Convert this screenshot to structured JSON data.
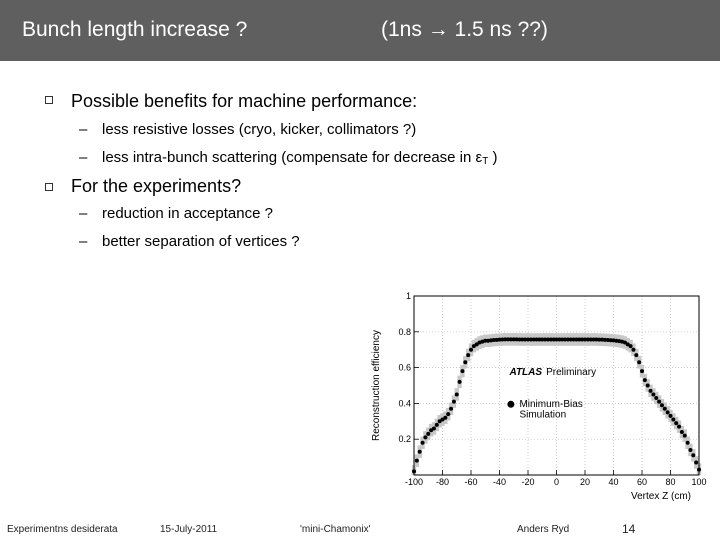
{
  "header": {
    "title": "Bunch length increase ?",
    "title_right_pre": "(1ns ",
    "arrow": "→",
    "title_right_post": " 1.5 ns ??)"
  },
  "bullets": [
    {
      "text": "Possible benefits for machine performance:",
      "subitems": [
        "less resistive losses (cryo, kicker, collimators ?)",
        "less intra-bunch scattering (compensate for decrease in εT )"
      ]
    },
    {
      "text": "For the experiments?",
      "subitems": [
        "reduction in acceptance ?",
        "better separation of vertices ?"
      ]
    }
  ],
  "sub_marker": "–",
  "subitem_2_prefix": "less intra-bunch scattering (compensate for decrease in ",
  "subitem_2_eps": "ε",
  "subitem_2_sub": "T",
  "subitem_2_suffix": " )",
  "chart_data": {
    "type": "scatter",
    "title": "",
    "xlabel": "Vertex Z (cm)",
    "ylabel": "Reconstruction efficiency",
    "xlim": [
      -100,
      100
    ],
    "ylim": [
      0,
      1
    ],
    "x_ticks": [
      -100,
      -80,
      -60,
      -40,
      -20,
      0,
      20,
      40,
      60,
      80,
      100
    ],
    "y_ticks": [
      0.2,
      0.4,
      0.6,
      0.8,
      1
    ],
    "annotation": "ATLAS Preliminary",
    "annotation_bold": "ATLAS",
    "annotation_rest": "Preliminary",
    "legend": "Minimum-Bias Simulation",
    "legend_line1": "Minimum-Bias",
    "legend_line2": "Simulation",
    "legend_position": "right",
    "colors": {
      "band": "#c8c8c8",
      "points": "#000000"
    },
    "series": [
      {
        "name": "Minimum-Bias Simulation",
        "x": [
          -100,
          -98,
          -96,
          -94,
          -92,
          -90,
          -88,
          -86,
          -84,
          -82,
          -80,
          -78,
          -76,
          -74,
          -72,
          -70,
          -68,
          -66,
          -64,
          -62,
          -60,
          -58,
          -56,
          -54,
          -52,
          -50,
          -48,
          -46,
          -44,
          -42,
          -40,
          -38,
          -36,
          -34,
          -32,
          -30,
          -28,
          -26,
          -24,
          -22,
          -20,
          -18,
          -16,
          -14,
          -12,
          -10,
          -8,
          -6,
          -4,
          -2,
          0,
          2,
          4,
          6,
          8,
          10,
          12,
          14,
          16,
          18,
          20,
          22,
          24,
          26,
          28,
          30,
          32,
          34,
          36,
          38,
          40,
          42,
          44,
          46,
          48,
          50,
          52,
          54,
          56,
          58,
          60,
          62,
          64,
          66,
          68,
          70,
          72,
          74,
          76,
          78,
          80,
          82,
          84,
          86,
          88,
          90,
          92,
          94,
          96,
          98,
          100
        ],
        "y": [
          0.02,
          0.08,
          0.13,
          0.18,
          0.21,
          0.23,
          0.25,
          0.26,
          0.28,
          0.3,
          0.31,
          0.32,
          0.34,
          0.37,
          0.41,
          0.45,
          0.52,
          0.58,
          0.63,
          0.67,
          0.7,
          0.72,
          0.73,
          0.74,
          0.745,
          0.75,
          0.75,
          0.752,
          0.754,
          0.755,
          0.756,
          0.757,
          0.758,
          0.758,
          0.758,
          0.758,
          0.758,
          0.757,
          0.757,
          0.757,
          0.757,
          0.757,
          0.757,
          0.757,
          0.757,
          0.757,
          0.757,
          0.757,
          0.757,
          0.757,
          0.757,
          0.757,
          0.757,
          0.757,
          0.757,
          0.757,
          0.757,
          0.757,
          0.757,
          0.757,
          0.757,
          0.757,
          0.757,
          0.757,
          0.757,
          0.756,
          0.756,
          0.755,
          0.754,
          0.753,
          0.752,
          0.75,
          0.748,
          0.745,
          0.74,
          0.73,
          0.72,
          0.7,
          0.67,
          0.63,
          0.58,
          0.53,
          0.5,
          0.47,
          0.45,
          0.43,
          0.41,
          0.39,
          0.37,
          0.35,
          0.33,
          0.31,
          0.29,
          0.27,
          0.24,
          0.22,
          0.18,
          0.14,
          0.11,
          0.07,
          0.03
        ]
      }
    ]
  },
  "footer": {
    "left": "Experimentns desiderata",
    "date": "15-July-2011",
    "event": "'mini-Chamonix'",
    "author": "Anders Ryd",
    "page": "14"
  }
}
